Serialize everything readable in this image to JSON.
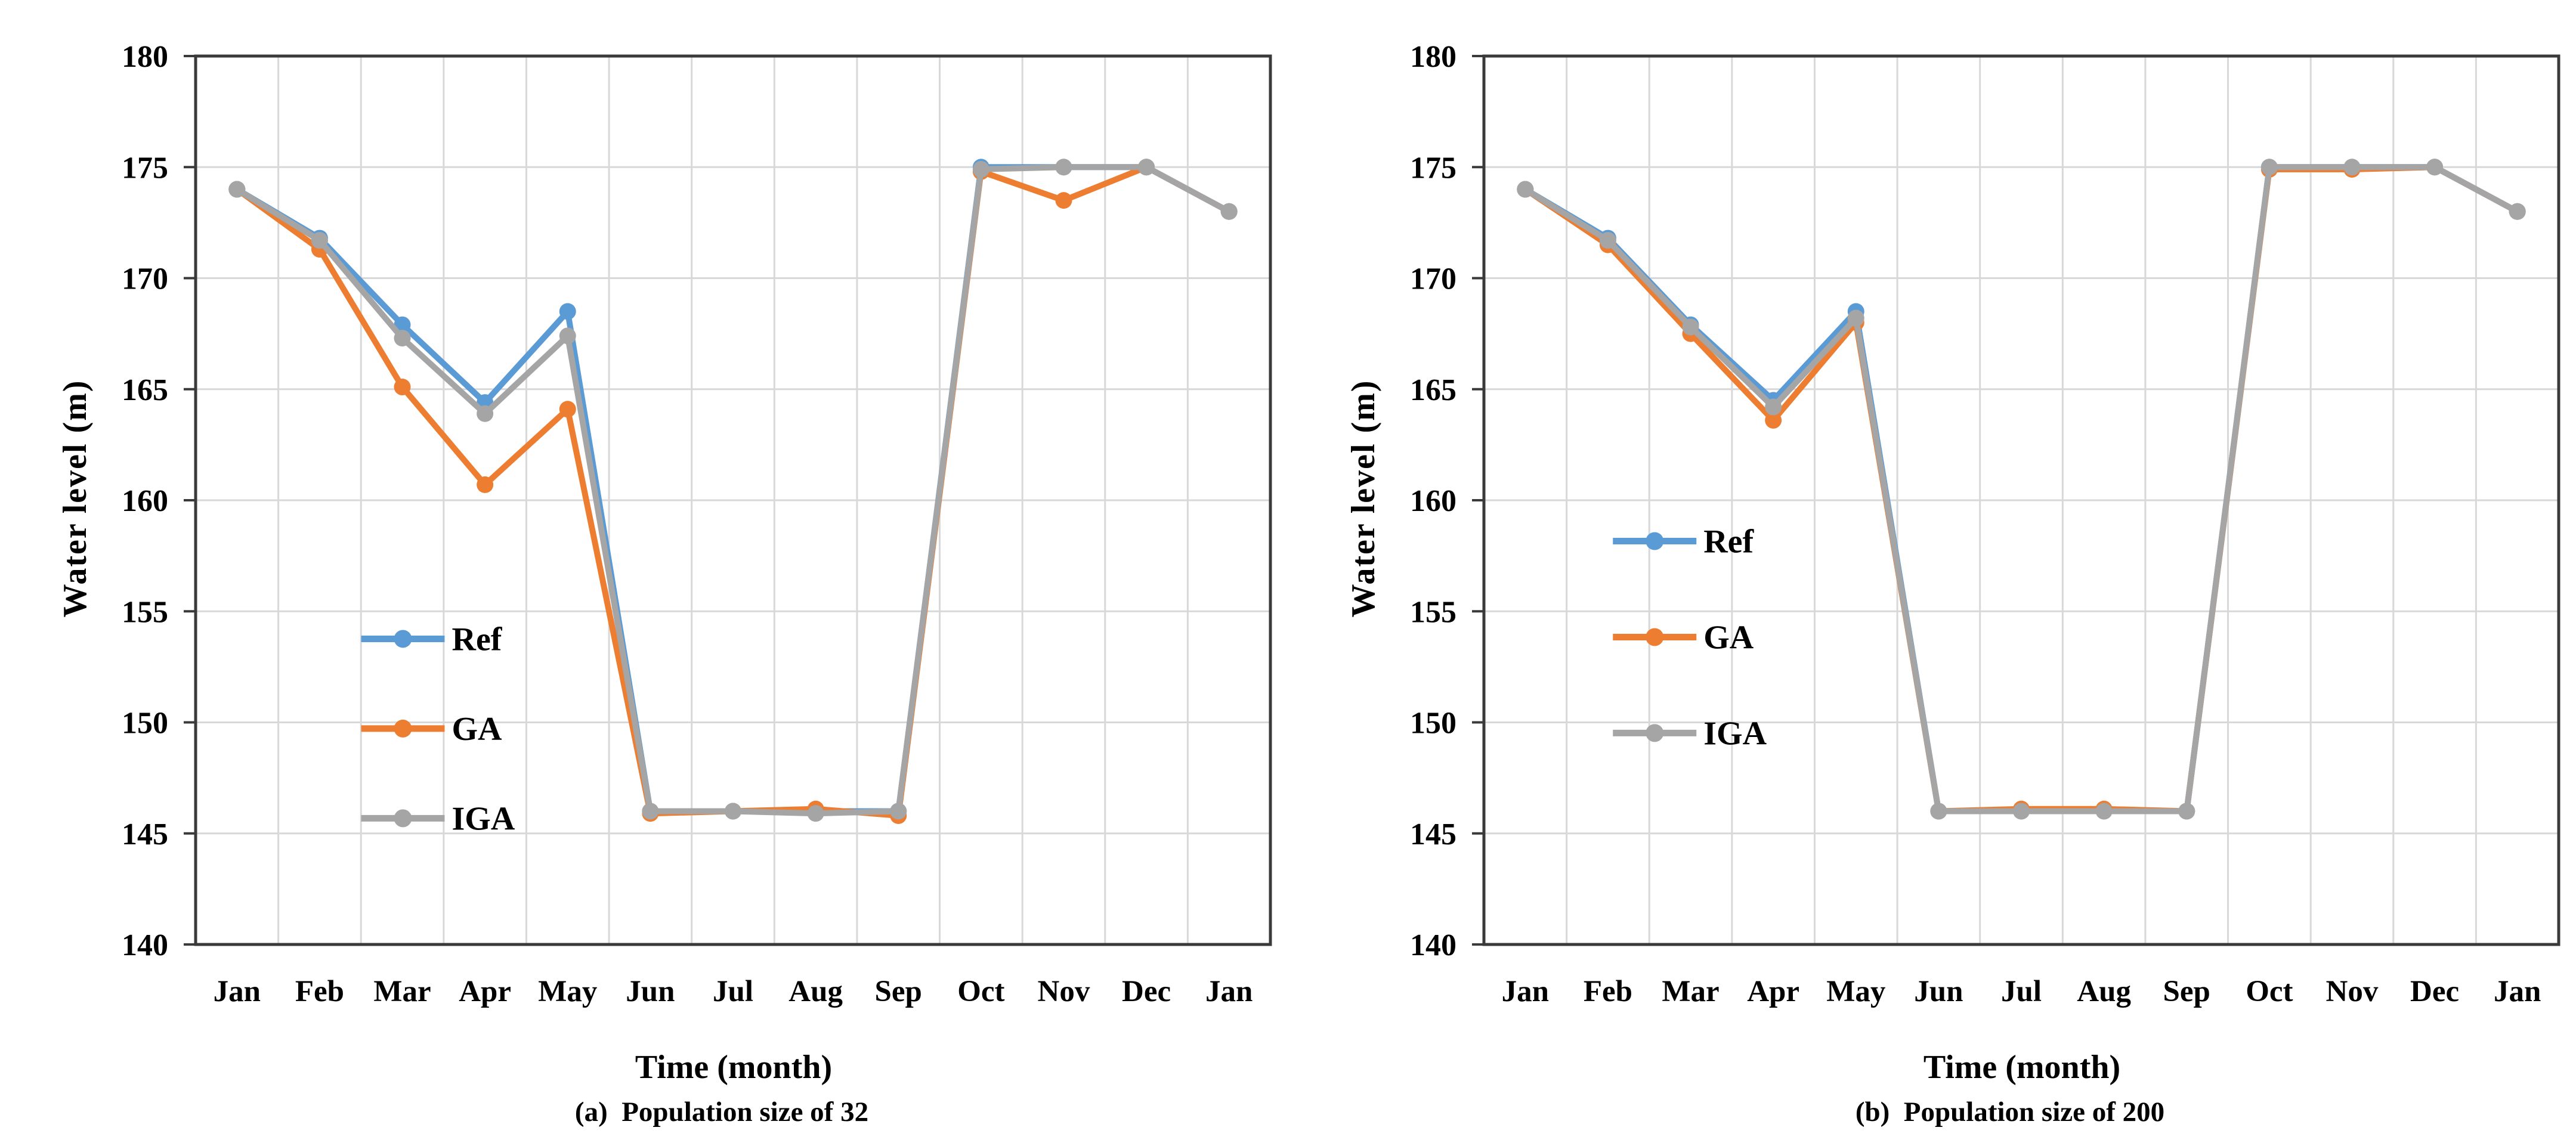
{
  "chart_data": [
    {
      "type": "line",
      "panel": "a",
      "caption": "(a)  Population size of 32",
      "xlabel": "Time (month)",
      "ylabel": "Water level (m)",
      "categories": [
        "Jan",
        "Feb",
        "Mar",
        "Apr",
        "May",
        "Jun",
        "Jul",
        "Aug",
        "Sep",
        "Oct",
        "Nov",
        "Dec",
        "Jan"
      ],
      "ylim": [
        140,
        180
      ],
      "ytick_step": 5,
      "grid": true,
      "legend_position": "inside-left-middle",
      "series": [
        {
          "name": "Ref",
          "color": "#5B9BD5",
          "values": [
            174,
            171.8,
            167.9,
            164.4,
            168.5,
            146,
            146,
            146,
            146,
            175,
            175,
            175,
            173
          ]
        },
        {
          "name": "GA",
          "color": "#ED7D31",
          "values": [
            174,
            171.3,
            165.1,
            160.7,
            164.1,
            145.9,
            146,
            146.1,
            145.8,
            174.8,
            173.5,
            175,
            173
          ]
        },
        {
          "name": "IGA",
          "color": "#A5A5A5",
          "values": [
            174,
            171.7,
            167.3,
            163.9,
            167.4,
            146,
            146,
            145.9,
            146,
            174.9,
            175,
            175,
            173
          ]
        }
      ]
    },
    {
      "type": "line",
      "panel": "b",
      "caption": "(b)  Population size of 200",
      "xlabel": "Time (month)",
      "ylabel": "Water level (m)",
      "categories": [
        "Jan",
        "Feb",
        "Mar",
        "Apr",
        "May",
        "Jun",
        "Jul",
        "Aug",
        "Sep",
        "Oct",
        "Nov",
        "Dec",
        "Jan"
      ],
      "ylim": [
        140,
        180
      ],
      "ytick_step": 5,
      "grid": true,
      "legend_position": "inside-left-middle",
      "series": [
        {
          "name": "Ref",
          "color": "#5B9BD5",
          "values": [
            174,
            171.8,
            167.9,
            164.5,
            168.5,
            146,
            146,
            146,
            146,
            175,
            175,
            175,
            173
          ]
        },
        {
          "name": "GA",
          "color": "#ED7D31",
          "values": [
            174,
            171.5,
            167.5,
            163.6,
            168.0,
            146,
            146.1,
            146.1,
            146,
            174.9,
            174.9,
            175,
            173
          ]
        },
        {
          "name": "IGA",
          "color": "#A5A5A5",
          "values": [
            174,
            171.7,
            167.8,
            164.2,
            168.2,
            146,
            146,
            146,
            146,
            175,
            175,
            175,
            173
          ]
        }
      ]
    }
  ],
  "style_colors": {
    "frame": "#3a3a3a",
    "gridline": "#d8d8d8",
    "text": "#000000"
  }
}
